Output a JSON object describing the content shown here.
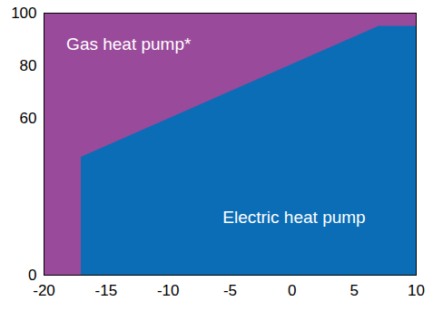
{
  "chart_data": {
    "type": "area",
    "series": [
      {
        "name": "Gas heat pump*",
        "color": "#9a4a9a",
        "x": [
          -20,
          10
        ],
        "values": [
          100,
          100
        ]
      },
      {
        "name": "Electric heat pump",
        "color": "#0b6db6",
        "x": [
          -17,
          7,
          10
        ],
        "values": [
          45,
          95,
          95
        ]
      }
    ],
    "xlim": [
      -20,
      10
    ],
    "xticks": [
      -20,
      -15,
      -10,
      -5,
      0,
      5,
      10
    ],
    "ylim": [
      0,
      100
    ],
    "yticks": [
      0,
      60,
      80,
      100
    ],
    "grid": false
  }
}
